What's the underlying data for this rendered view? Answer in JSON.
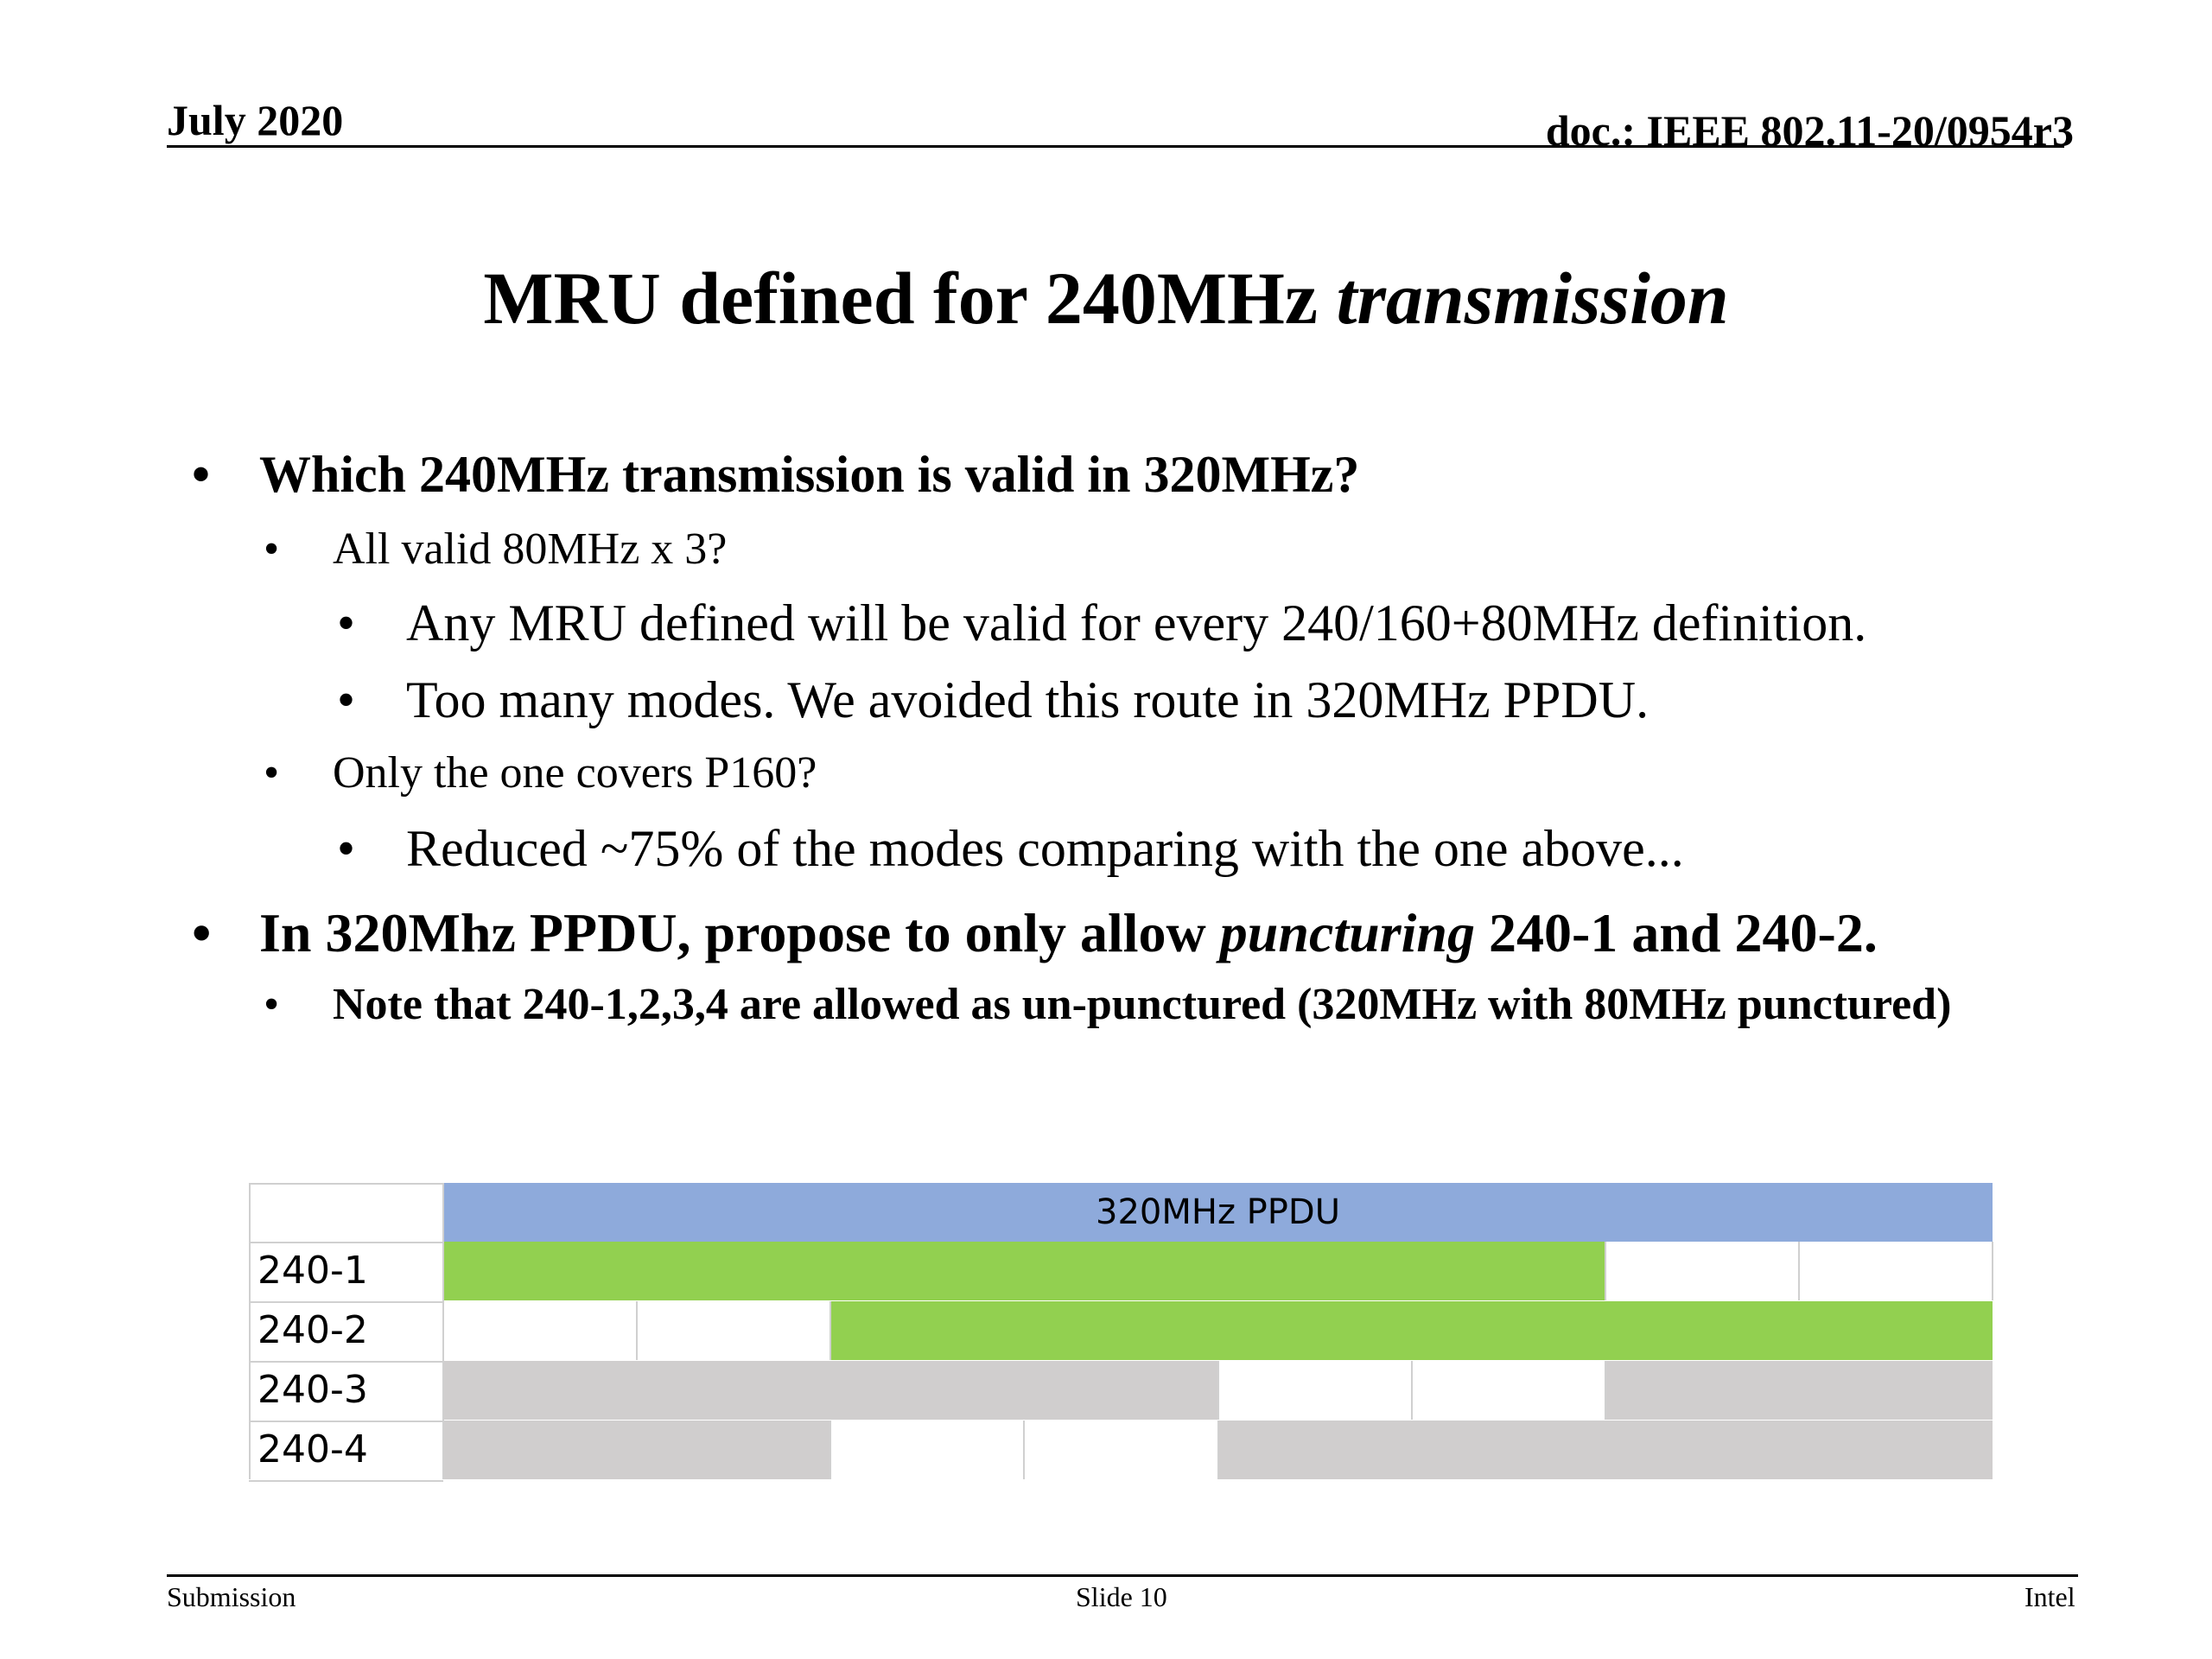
{
  "header": {
    "date": "July 2020",
    "doc": "doc.: IEEE 802.11-20/0954r3"
  },
  "title": {
    "main": "MRU defined for 240MHz ",
    "italic": "transmission"
  },
  "bullets": {
    "q1": "Which 240MHz transmission is valid in 320MHz?",
    "q1_a": "All valid 80MHz x 3?",
    "q1_a_1": "Any MRU defined will be valid for every 240/160+80MHz definition.",
    "q1_a_2": "Too many modes. We avoided this route in 320MHz PPDU.",
    "q1_b": "Only the one covers P160?",
    "q1_b_1": "Reduced ~75% of the modes comparing with the one above...",
    "p1_pre": "In 320Mhz PPDU, propose to only allow ",
    "p1_italic": "puncturing",
    "p1_post": " 240-1 and 240-2.",
    "p1_note": "Note that 240-1,2,3,4 are allowed as un-punctured (320MHz with 80MHz punctured)"
  },
  "bullet_symbol": "•",
  "table": {
    "header": "320MHz PPDU",
    "rows": [
      {
        "label": "240-1",
        "segments": [
          "green",
          "green",
          "green",
          "green",
          "green",
          "green",
          "white",
          "white"
        ]
      },
      {
        "label": "240-2",
        "segments": [
          "white",
          "white",
          "green",
          "green",
          "green",
          "green",
          "green",
          "green"
        ]
      },
      {
        "label": "240-3",
        "segments": [
          "gray",
          "gray",
          "gray",
          "gray",
          "white",
          "white",
          "gray",
          "gray"
        ]
      },
      {
        "label": "240-4",
        "segments": [
          "gray",
          "gray",
          "white",
          "white",
          "gray",
          "gray",
          "gray",
          "gray"
        ]
      }
    ],
    "colors": {
      "header": "#8eaadb",
      "green": "#92d050",
      "gray": "#d0cece",
      "white": "#ffffff"
    }
  },
  "footer": {
    "left": "Submission",
    "center": "Slide 10",
    "right": "Intel"
  }
}
